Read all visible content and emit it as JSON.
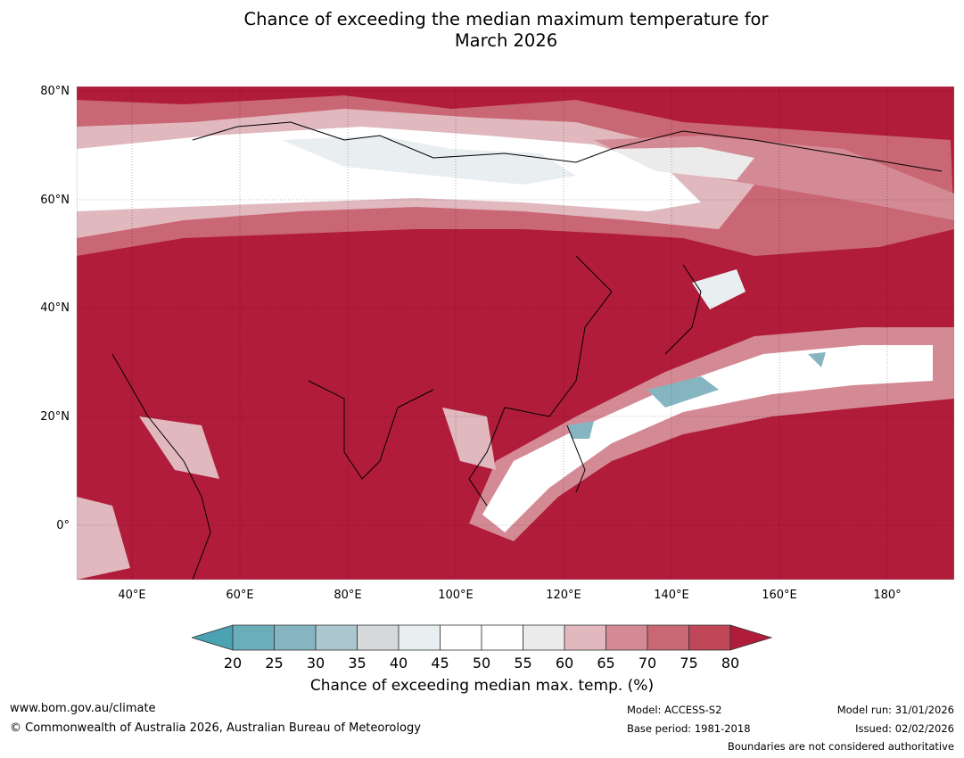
{
  "title_line1": "Chance of exceeding the median maximum temperature for",
  "title_line2": "March 2026",
  "map": {
    "lat_labels": [
      "80°N",
      "60°N",
      "40°N",
      "20°N",
      "0°"
    ],
    "lon_labels": [
      "40°E",
      "60°E",
      "80°E",
      "100°E",
      "120°E",
      "140°E",
      "160°E",
      "180°"
    ],
    "ocean_color": "#b01c3a"
  },
  "colorbar": {
    "ticks": [
      "20",
      "25",
      "30",
      "35",
      "40",
      "45",
      "50",
      "55",
      "60",
      "65",
      "70",
      "75",
      "80"
    ],
    "colors": [
      "#6aaebb",
      "#86b5c2",
      "#abc6cc",
      "#d5d9da",
      "#e9eff1",
      "#ffffff",
      "#ffffff",
      "#ecebec",
      "#e0b8be",
      "#d48a94",
      "#c96774",
      "#bf4656"
    ],
    "under_color": "#4aa2b3",
    "over_color": "#b01c3a",
    "label": "Chance of exceeding median max. temp. (%)"
  },
  "footer": {
    "url": "www.bom.gov.au/climate",
    "copyright": "© Commonwealth of Australia 2026, Australian Bureau of Meteorology",
    "model": "Model: ACCESS-S2",
    "base_period": "Base period: 1981-2018",
    "model_run": "Model run: 31/01/2026",
    "issued": "Issued: 02/02/2026",
    "disclaimer": "Boundaries are not considered authoritative"
  }
}
